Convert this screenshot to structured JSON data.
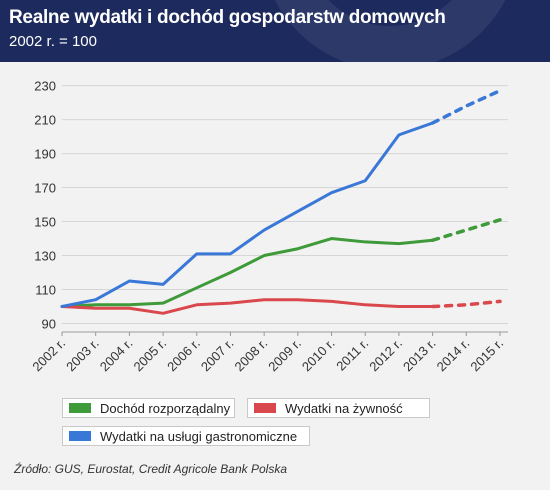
{
  "header": {
    "title": "Realne wydatki i dochód gospodarstw domowych",
    "subtitle": "2002 r. = 100",
    "background_color": "#1c2a5e"
  },
  "chart_data": {
    "type": "line",
    "x": [
      "2002 r.",
      "2003 r.",
      "2004 r.",
      "2005 r.",
      "2006 r.",
      "2007 r.",
      "2008 r.",
      "2009 r.",
      "2010 r.",
      "2011 r.",
      "2012 r.",
      "2013 r.",
      "2014 r.",
      "2015 r."
    ],
    "yticks": [
      90,
      110,
      130,
      150,
      170,
      190,
      210,
      230
    ],
    "ylim": [
      85,
      238
    ],
    "grid": true,
    "legend_position": "bottom-left",
    "forecast_from_index": 11,
    "series": [
      {
        "name": "Dochód rozporządalny",
        "color": "#3f9a3a",
        "values": [
          100,
          101,
          101,
          102,
          111,
          120,
          130,
          134,
          140,
          138,
          137,
          139,
          145,
          151
        ]
      },
      {
        "name": "Wydatki na żywność",
        "color": "#d9484c",
        "values": [
          100,
          99,
          99,
          96,
          101,
          102,
          104,
          104,
          103,
          101,
          100,
          100,
          101,
          103
        ]
      },
      {
        "name": "Wydatki na usługi gastronomiczne",
        "color": "#3a78d8",
        "values": [
          100,
          104,
          115,
          113,
          131,
          131,
          145,
          156,
          167,
          174,
          201,
          208,
          218,
          227
        ]
      }
    ]
  },
  "source": "Źródło: GUS, Eurostat, Credit Agricole Bank Polska"
}
